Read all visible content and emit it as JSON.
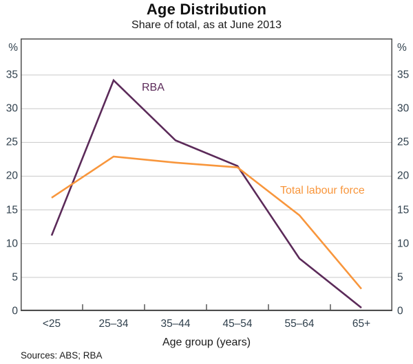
{
  "chart_data": {
    "type": "line",
    "title": "Age Distribution",
    "subtitle": "Share of total, as at June 2013",
    "unit_left": "%",
    "unit_right": "%",
    "categories": [
      "<25",
      "25–34",
      "35–44",
      "45–54",
      "55–64",
      "65+"
    ],
    "series": [
      {
        "name": "RBA",
        "color": "#5b2a59",
        "values": [
          11.2,
          34.2,
          25.3,
          21.5,
          7.8,
          0.5
        ]
      },
      {
        "name": "Total labour force",
        "color": "#f8963c",
        "values": [
          16.8,
          22.9,
          22.0,
          21.3,
          14.2,
          3.3
        ]
      }
    ],
    "xlabel": "Age group (years)",
    "ylim": [
      0,
      40
    ],
    "yticks": [
      0,
      5,
      10,
      15,
      20,
      25,
      30,
      35
    ],
    "grid": true,
    "legend_position": "inline-annotations",
    "gridline_color": "#c9c9c9",
    "frame_color": "#4d4d4d",
    "tick_label_color": "#30404d"
  },
  "sources": "Sources: ABS; RBA"
}
